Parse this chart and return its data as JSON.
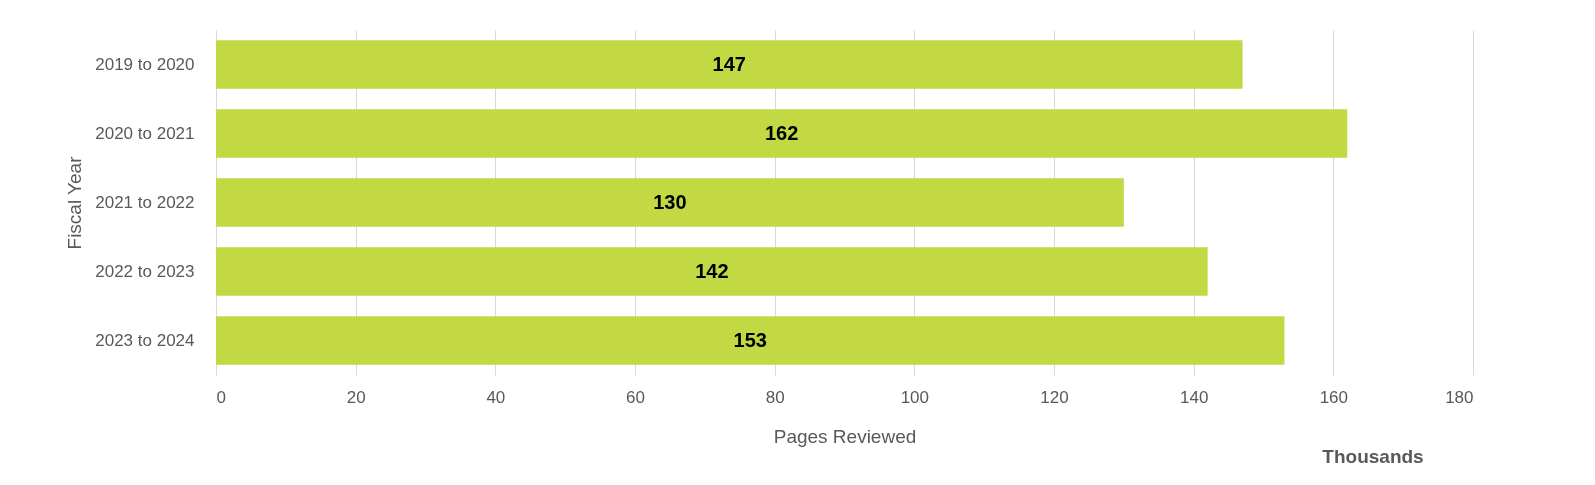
{
  "chart_data": {
    "type": "bar",
    "orientation": "horizontal",
    "categories": [
      "2019 to 2020",
      "2020 to 2021",
      "2021 to 2022",
      "2022 to 2023",
      "2023 to 2024"
    ],
    "values": [
      147,
      162,
      130,
      142,
      153
    ],
    "color": "#c2d944",
    "xlim": [
      0,
      180
    ],
    "xticks": [
      0,
      20,
      40,
      60,
      80,
      100,
      120,
      140,
      160,
      180
    ],
    "xlabel": "Pages Reviewed",
    "ylabel": "Fiscal Year",
    "annotations": [
      "Thousands"
    ],
    "data_labels": true,
    "grid": "x"
  }
}
